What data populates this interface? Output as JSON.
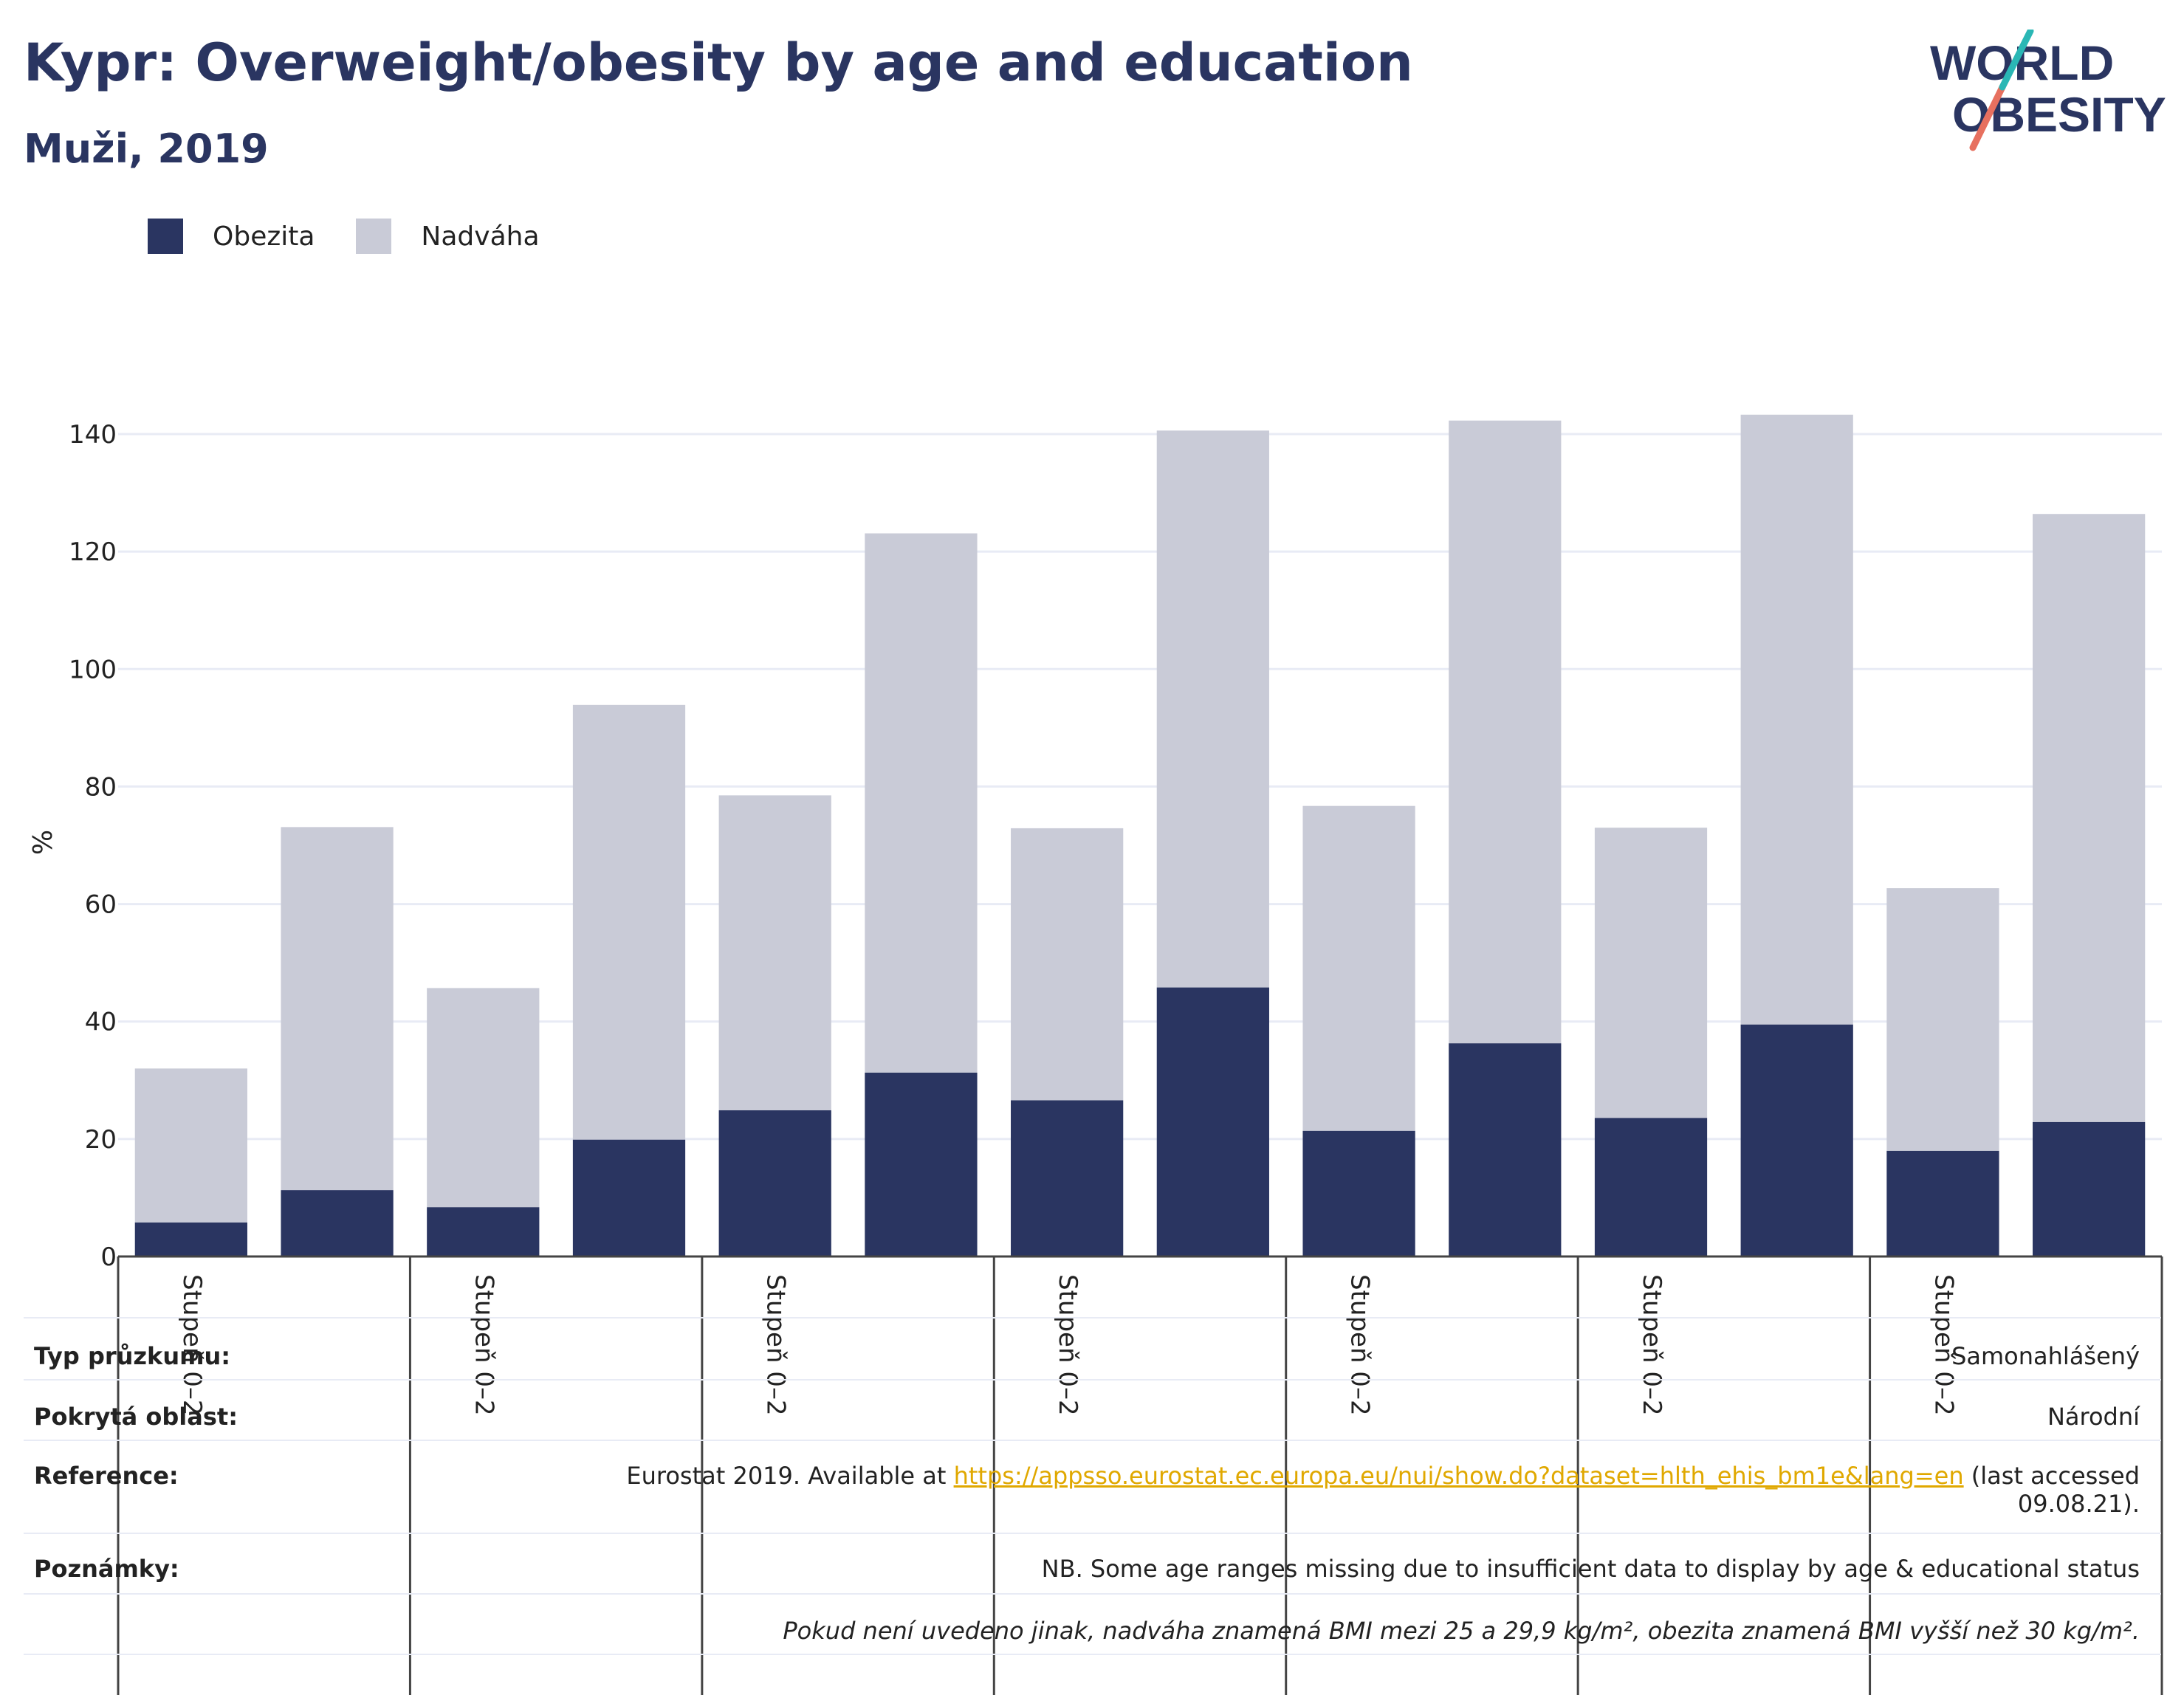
{
  "header": {
    "title": "Kypr: Overweight/obesity by age and education",
    "subtitle": "Muži, 2019"
  },
  "logo": {
    "line1": "WORLD",
    "line2": "OBESITY"
  },
  "legend": [
    {
      "label": "Obezita",
      "color": "#2a3561"
    },
    {
      "label": "Nadváha",
      "color": "#c9cbd7"
    }
  ],
  "chart_data": {
    "type": "bar",
    "stacked": true,
    "ylabel": "%",
    "ylim": [
      0,
      140
    ],
    "yticks": [
      0,
      20,
      40,
      60,
      80,
      100,
      120,
      140
    ],
    "group_labels": [
      "Stupeň 0–2",
      "Stupeň 0–2",
      "Stupeň 0–2",
      "Stupeň 0–2",
      "Stupeň 0–2",
      "Stupeň 0–2",
      "Stupeň 0–2"
    ],
    "bars_per_group": 2,
    "series": [
      {
        "name": "Obezita",
        "color": "#2a3561",
        "values": [
          5.8,
          11.3,
          8.4,
          19.9,
          24.9,
          31.3,
          26.6,
          45.8,
          21.4,
          36.3,
          23.6,
          39.5,
          18.0,
          22.9
        ]
      },
      {
        "name": "Nadváha",
        "color": "#c9cbd7",
        "values": [
          26.2,
          61.8,
          37.3,
          74.0,
          53.6,
          91.8,
          46.3,
          94.8,
          55.3,
          106.0,
          49.4,
          103.8,
          44.7,
          103.5
        ]
      }
    ],
    "grid": true
  },
  "table": {
    "survey_type": {
      "label": "Typ průzkumu:",
      "value": "Samonahlášený"
    },
    "coverage": {
      "label": "Pokrytá oblast:",
      "value": "Národní"
    },
    "reference": {
      "label": "Reference:",
      "prefix": "Eurostat 2019. Available at ",
      "link": "https://appsso.eurostat.ec.europa.eu/nui/show.do?dataset=hlth_ehis_bm1e&lang=en",
      "suffix": " (last accessed",
      "line2": "09.08.21)."
    },
    "notes": {
      "label": "Poznámky:",
      "value": "NB. Some age ranges missing due to insufficient data to display by age & educational status",
      "footnote": "Pokud není uvedeno jinak, nadváha znamená BMI mezi 25 a 29,9 kg/m², obezita znamená BMI vyšší než 30 kg/m²."
    }
  }
}
